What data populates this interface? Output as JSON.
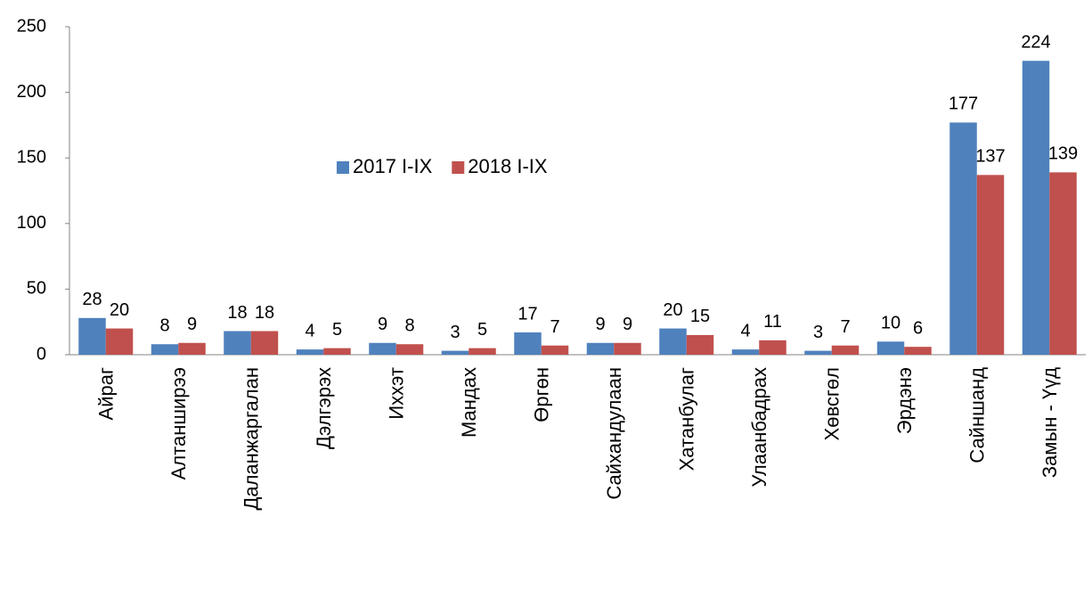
{
  "chart_data": {
    "type": "bar",
    "categories": [
      "Айраг",
      "Алтанширээ",
      "Даланжаргалан",
      "Дэлгэрэх",
      "Иххэт",
      "Мандах",
      "Өргөн",
      "Сайхандулаан",
      "Хатанбулаг",
      "Улаанбадрах",
      "Хөвсгөл",
      "Эрдэнэ",
      "Сайншанд",
      "Замын - Үүд"
    ],
    "series": [
      {
        "name": "2017 I-IX",
        "color": "#4f81bd",
        "values": [
          28,
          8,
          18,
          4,
          9,
          3,
          17,
          9,
          20,
          4,
          3,
          10,
          177,
          224
        ]
      },
      {
        "name": "2018 I-IX",
        "color": "#c0504d",
        "values": [
          20,
          9,
          18,
          5,
          8,
          5,
          7,
          9,
          15,
          11,
          7,
          6,
          137,
          139
        ]
      }
    ],
    "ylim": [
      0,
      250
    ],
    "yticks": [
      0,
      50,
      100,
      150,
      200,
      250
    ],
    "grid": false,
    "legend": "center"
  }
}
